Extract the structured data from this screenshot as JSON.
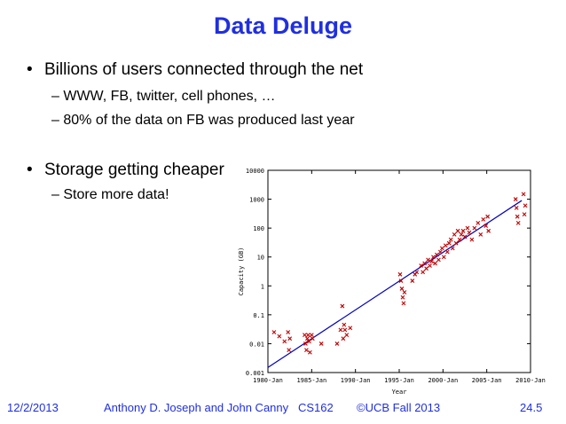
{
  "slide": {
    "title": "Data Deluge",
    "bullets": [
      {
        "text": "Billions of users connected through the net",
        "sub": [
          "– WWW, FB, twitter, cell phones, …",
          "– 80% of the data on FB was produced last year"
        ]
      },
      {
        "text": "Storage getting cheaper",
        "sub": [
          "– Store more data!"
        ]
      }
    ],
    "bullet_glyph": "•"
  },
  "footer": {
    "date": "12/2/2013",
    "authors": "Anthony D. Joseph and John Canny",
    "course": "CS162",
    "copyright": "©UCB Fall 2013",
    "page": "24.5"
  },
  "colors": {
    "title": "#1f2fe0",
    "footer": "#1f2fe0",
    "points": "#c00000",
    "trend": "#0000c0"
  },
  "chart_data": {
    "type": "scatter",
    "title": "",
    "xlabel": "Year",
    "ylabel": "Capacity (GB)",
    "y_scale": "log",
    "ylim": [
      0.001,
      10000
    ],
    "xlim": [
      1980,
      2010
    ],
    "y_ticks": [
      0.001,
      0.01,
      0.1,
      1,
      10,
      100,
      1000,
      10000
    ],
    "y_tick_labels": [
      "0.001",
      "0.01",
      "0.1",
      "1",
      "10",
      "100",
      "1000",
      "10000"
    ],
    "x_ticks": [
      1980,
      1985,
      1990,
      1995,
      2000,
      2005,
      2010
    ],
    "x_tick_labels": [
      "1980-Jan",
      "1985-Jan",
      "1990-Jan",
      "1995-Jan",
      "2000-Jan",
      "2005-Jan",
      "2010-Jan"
    ],
    "grid": false,
    "trend_line": {
      "x": [
        1980,
        2009
      ],
      "y": [
        0.0015,
        900
      ]
    },
    "points": [
      {
        "x": 1980.7,
        "y": 0.025
      },
      {
        "x": 1981.3,
        "y": 0.018
      },
      {
        "x": 1981.9,
        "y": 0.012
      },
      {
        "x": 1982.3,
        "y": 0.025
      },
      {
        "x": 1982.4,
        "y": 0.006
      },
      {
        "x": 1982.5,
        "y": 0.015
      },
      {
        "x": 1984.2,
        "y": 0.02
      },
      {
        "x": 1984.3,
        "y": 0.01
      },
      {
        "x": 1984.4,
        "y": 0.006
      },
      {
        "x": 1984.5,
        "y": 0.015
      },
      {
        "x": 1984.6,
        "y": 0.02
      },
      {
        "x": 1984.7,
        "y": 0.012
      },
      {
        "x": 1984.8,
        "y": 0.005
      },
      {
        "x": 1985.0,
        "y": 0.02
      },
      {
        "x": 1985.1,
        "y": 0.015
      },
      {
        "x": 1986.1,
        "y": 0.01
      },
      {
        "x": 1987.9,
        "y": 0.01
      },
      {
        "x": 1988.3,
        "y": 0.03
      },
      {
        "x": 1988.5,
        "y": 0.2
      },
      {
        "x": 1988.6,
        "y": 0.015
      },
      {
        "x": 1988.7,
        "y": 0.045
      },
      {
        "x": 1988.8,
        "y": 0.03
      },
      {
        "x": 1989.0,
        "y": 0.02
      },
      {
        "x": 1989.4,
        "y": 0.035
      },
      {
        "x": 1995.1,
        "y": 2.5
      },
      {
        "x": 1995.2,
        "y": 1.5
      },
      {
        "x": 1995.3,
        "y": 0.8
      },
      {
        "x": 1995.4,
        "y": 0.4
      },
      {
        "x": 1995.5,
        "y": 0.25
      },
      {
        "x": 1995.6,
        "y": 0.6
      },
      {
        "x": 1996.5,
        "y": 1.5
      },
      {
        "x": 1996.8,
        "y": 2.5
      },
      {
        "x": 1997.0,
        "y": 3
      },
      {
        "x": 1997.5,
        "y": 5
      },
      {
        "x": 1997.7,
        "y": 3
      },
      {
        "x": 1997.9,
        "y": 6
      },
      {
        "x": 1998.1,
        "y": 4
      },
      {
        "x": 1998.3,
        "y": 8
      },
      {
        "x": 1998.5,
        "y": 5
      },
      {
        "x": 1998.7,
        "y": 7
      },
      {
        "x": 1998.9,
        "y": 10
      },
      {
        "x": 1999.1,
        "y": 6
      },
      {
        "x": 1999.3,
        "y": 12
      },
      {
        "x": 1999.5,
        "y": 8
      },
      {
        "x": 1999.7,
        "y": 15
      },
      {
        "x": 1999.9,
        "y": 20
      },
      {
        "x": 2000.1,
        "y": 10
      },
      {
        "x": 2000.3,
        "y": 25
      },
      {
        "x": 2000.5,
        "y": 15
      },
      {
        "x": 2000.7,
        "y": 30
      },
      {
        "x": 2000.9,
        "y": 40
      },
      {
        "x": 2001.1,
        "y": 20
      },
      {
        "x": 2001.3,
        "y": 60
      },
      {
        "x": 2001.5,
        "y": 30
      },
      {
        "x": 2001.7,
        "y": 80
      },
      {
        "x": 2001.9,
        "y": 40
      },
      {
        "x": 2002.1,
        "y": 60
      },
      {
        "x": 2002.3,
        "y": 80
      },
      {
        "x": 2002.5,
        "y": 50
      },
      {
        "x": 2002.8,
        "y": 100
      },
      {
        "x": 2003.0,
        "y": 70
      },
      {
        "x": 2003.3,
        "y": 40
      },
      {
        "x": 2003.6,
        "y": 100
      },
      {
        "x": 2004.0,
        "y": 150
      },
      {
        "x": 2004.3,
        "y": 60
      },
      {
        "x": 2004.6,
        "y": 200
      },
      {
        "x": 2004.9,
        "y": 120
      },
      {
        "x": 2005.1,
        "y": 250
      },
      {
        "x": 2005.2,
        "y": 80
      },
      {
        "x": 2008.3,
        "y": 1000
      },
      {
        "x": 2008.4,
        "y": 500
      },
      {
        "x": 2008.5,
        "y": 250
      },
      {
        "x": 2008.6,
        "y": 150
      },
      {
        "x": 2009.2,
        "y": 1500
      },
      {
        "x": 2009.3,
        "y": 300
      },
      {
        "x": 2009.4,
        "y": 600
      }
    ]
  }
}
